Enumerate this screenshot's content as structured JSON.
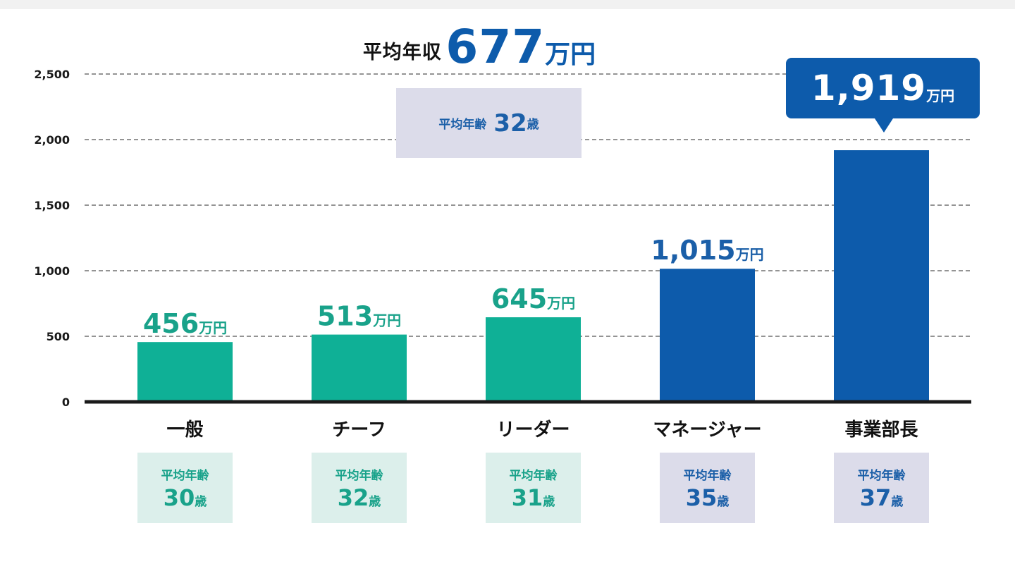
{
  "headline": {
    "label": "平均年収",
    "value": "677",
    "unit": "万円"
  },
  "overall_age": {
    "label": "平均年齢",
    "value": "32",
    "unit": "歳"
  },
  "callout": {
    "value": "1,919",
    "unit": "万円"
  },
  "colors": {
    "green": "#0fb096",
    "green_text": "#19a28a",
    "blue": "#0d5bab",
    "blue_text": "#1b5fa8",
    "green_box": "#dcefeb",
    "blue_box": "#dcdcea",
    "axis": "#1a1a1a",
    "grid": "#555555"
  },
  "chart_data": {
    "type": "bar",
    "title": "平均年収 677万円",
    "xlabel": "",
    "ylabel": "",
    "unit": "万円",
    "ylim": [
      0,
      2500
    ],
    "yticks": [
      0,
      500,
      1000,
      1500,
      2000,
      2500
    ],
    "ytick_labels": [
      "0",
      "500",
      "1,000",
      "1,500",
      "2,000",
      "2,500"
    ],
    "grid": "horizontal-dashed",
    "categories": [
      "一般",
      "チーフ",
      "リーダー",
      "マネージャー",
      "事業部長"
    ],
    "values": [
      456,
      513,
      645,
      1015,
      1919
    ],
    "value_labels": [
      "456",
      "513",
      "645",
      "1,015",
      "1,919"
    ],
    "bar_colors": [
      "green",
      "green",
      "green",
      "blue",
      "blue"
    ],
    "avg_age": [
      {
        "label": "平均年齢",
        "value": "30",
        "unit": "歳"
      },
      {
        "label": "平均年齢",
        "value": "32",
        "unit": "歳"
      },
      {
        "label": "平均年齢",
        "value": "31",
        "unit": "歳"
      },
      {
        "label": "平均年齢",
        "value": "35",
        "unit": "歳"
      },
      {
        "label": "平均年齢",
        "value": "37",
        "unit": "歳"
      }
    ],
    "annotations": [
      "平均年収 677万円",
      "平均年齢 32歳",
      "1,919万円"
    ]
  }
}
